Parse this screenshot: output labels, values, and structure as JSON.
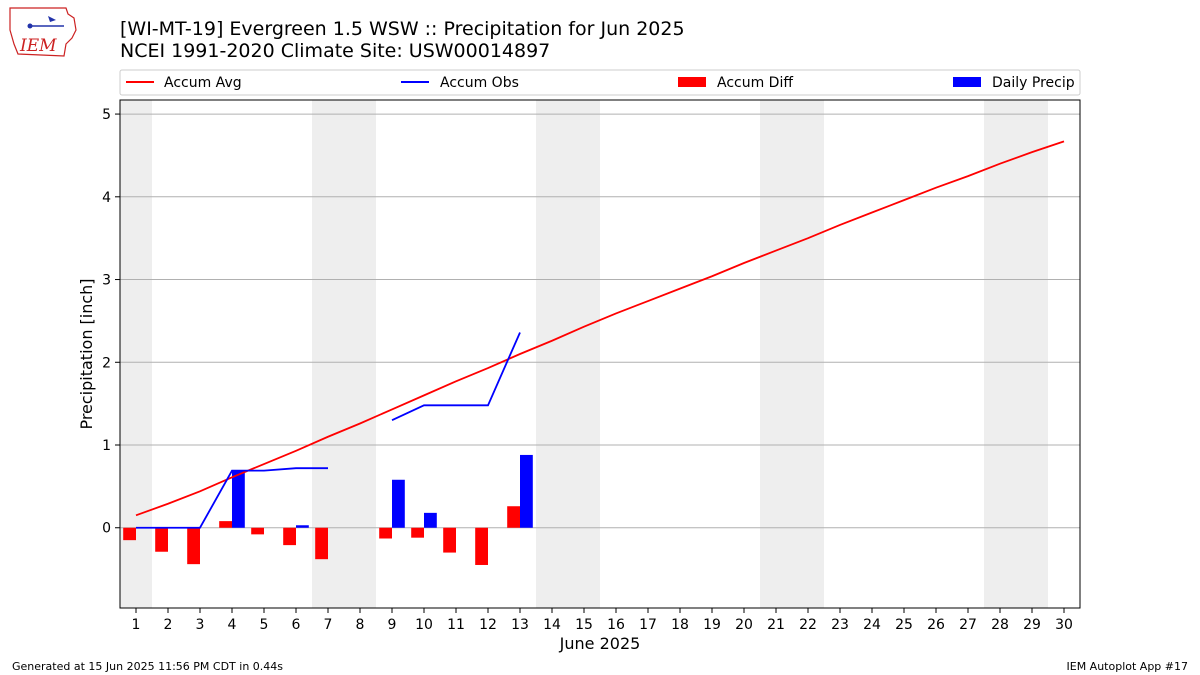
{
  "titles": {
    "line1": "[WI-MT-19] Evergreen 1.5 WSW :: Precipitation for Jun 2025",
    "line2": "NCEI 1991-2020 Climate Site: USW00014897"
  },
  "logo": {
    "text": "IEM",
    "icon": "iowa-state-outline-logo"
  },
  "footer": {
    "left": "Generated at 15 Jun 2025 11:56 PM CDT in 0.44s",
    "right": "IEM Autoplot App #17"
  },
  "colors": {
    "accum_avg": "#ff0000",
    "accum_obs": "#0000ff",
    "accum_diff": "#ff0000",
    "daily_precip": "#0000ff",
    "weekend_band": "#eeeeee",
    "grid": "#b0b0b0"
  },
  "chart_data": {
    "type": "bar",
    "xlabel": "June 2025",
    "ylabel": "Precipitation [inch]",
    "xlim": [
      0.5,
      30.5
    ],
    "ylim": [
      -0.97,
      5.17
    ],
    "x_ticks": [
      1,
      2,
      3,
      4,
      5,
      6,
      7,
      8,
      9,
      10,
      11,
      12,
      13,
      14,
      15,
      16,
      17,
      18,
      19,
      20,
      21,
      22,
      23,
      24,
      25,
      26,
      27,
      28,
      29,
      30
    ],
    "y_ticks": [
      0,
      1,
      2,
      3,
      4,
      5
    ],
    "grid": "horizontal",
    "legend": {
      "placement": "top",
      "entries": [
        "Accum Avg",
        "Accum Obs",
        "Accum Diff",
        "Daily Precip"
      ]
    },
    "weekend_days": [
      1,
      7,
      8,
      14,
      15,
      21,
      22,
      28,
      29
    ],
    "series": [
      {
        "name": "Accum Avg",
        "kind": "line",
        "x": [
          1,
          2,
          3,
          4,
          5,
          6,
          7,
          8,
          9,
          10,
          11,
          12,
          13,
          14,
          15,
          16,
          17,
          18,
          19,
          20,
          21,
          22,
          23,
          24,
          25,
          26,
          27,
          28,
          29,
          30
        ],
        "values": [
          0.15,
          0.29,
          0.44,
          0.61,
          0.77,
          0.93,
          1.1,
          1.26,
          1.43,
          1.6,
          1.77,
          1.93,
          2.1,
          2.26,
          2.43,
          2.59,
          2.74,
          2.89,
          3.04,
          3.2,
          3.35,
          3.5,
          3.66,
          3.81,
          3.96,
          4.11,
          4.25,
          4.4,
          4.54,
          4.67
        ]
      },
      {
        "name": "Accum Obs",
        "kind": "line",
        "x": [
          1,
          2,
          3,
          4,
          5,
          6,
          7,
          8,
          9,
          10,
          11,
          12,
          13
        ],
        "values": [
          0,
          0,
          0,
          0.69,
          0.69,
          0.72,
          0.72,
          null,
          1.3,
          1.48,
          1.48,
          1.48,
          2.36
        ]
      },
      {
        "name": "Accum Diff",
        "kind": "bar",
        "x": [
          1,
          2,
          3,
          4,
          5,
          6,
          7,
          9,
          10,
          11,
          12,
          13
        ],
        "values": [
          -0.15,
          -0.29,
          -0.44,
          0.08,
          -0.08,
          -0.21,
          -0.38,
          -0.13,
          -0.12,
          -0.3,
          -0.45,
          0.26
        ]
      },
      {
        "name": "Daily Precip",
        "kind": "bar",
        "x": [
          4,
          6,
          9,
          10,
          13
        ],
        "values": [
          0.69,
          0.03,
          0.58,
          0.18,
          0.88
        ]
      }
    ]
  }
}
